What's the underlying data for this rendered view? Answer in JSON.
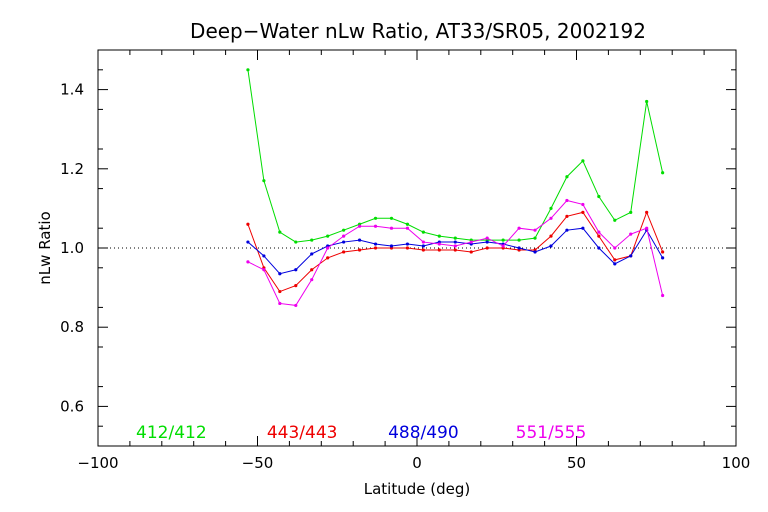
{
  "chart_data": {
    "type": "line",
    "title": "Deep−Water nLw Ratio, AT33/SR05, 2002192",
    "xlabel": "Latitude (deg)",
    "ylabel": "nLw Ratio",
    "xlim": [
      -100,
      100
    ],
    "ylim": [
      0.5,
      1.5
    ],
    "x_ticks": [
      -100,
      -50,
      0,
      50,
      100
    ],
    "x_tick_labels": [
      "−100",
      "−50",
      "0",
      "50",
      "100"
    ],
    "y_ticks": [
      0.6,
      0.8,
      1.0,
      1.2,
      1.4
    ],
    "y_tick_labels": [
      "0.6",
      "0.8",
      "1.0",
      "1.2",
      "1.4"
    ],
    "reference_line": {
      "y": 1.0,
      "style": "dotted"
    },
    "grid": false,
    "x": [
      -53,
      -48,
      -43,
      -38,
      -33,
      -28,
      -23,
      -18,
      -13,
      -8,
      -3,
      2,
      7,
      12,
      17,
      22,
      27,
      32,
      37,
      42,
      47,
      52,
      57,
      62,
      67,
      72,
      77
    ],
    "series": [
      {
        "name": "412/412",
        "color": "#00dd00",
        "values": [
          1.45,
          1.17,
          1.04,
          1.015,
          1.02,
          1.03,
          1.045,
          1.06,
          1.075,
          1.075,
          1.06,
          1.04,
          1.03,
          1.025,
          1.02,
          1.02,
          1.02,
          1.02,
          1.025,
          1.1,
          1.18,
          1.22,
          1.13,
          1.07,
          1.09,
          1.37,
          1.19
        ]
      },
      {
        "name": "443/443",
        "color": "#ee0000",
        "values": [
          1.06,
          0.95,
          0.89,
          0.905,
          0.945,
          0.975,
          0.99,
          0.995,
          1.0,
          1.0,
          1.0,
          0.995,
          0.995,
          0.995,
          0.99,
          1.0,
          1.0,
          0.995,
          0.995,
          1.03,
          1.08,
          1.09,
          1.03,
          0.97,
          0.98,
          1.09,
          0.99
        ]
      },
      {
        "name": "488/490",
        "color": "#0000dd",
        "values": [
          1.015,
          0.98,
          0.935,
          0.945,
          0.985,
          1.005,
          1.015,
          1.02,
          1.01,
          1.005,
          1.01,
          1.005,
          1.015,
          1.015,
          1.01,
          1.015,
          1.01,
          1.0,
          0.99,
          1.005,
          1.045,
          1.05,
          1.0,
          0.96,
          0.98,
          1.045,
          0.975
        ]
      },
      {
        "name": "551/555",
        "color": "#ee00ee",
        "values": [
          0.965,
          0.945,
          0.86,
          0.855,
          0.92,
          1.0,
          1.03,
          1.055,
          1.055,
          1.05,
          1.05,
          1.015,
          1.01,
          1.005,
          1.015,
          1.025,
          1.005,
          1.05,
          1.045,
          1.075,
          1.12,
          1.11,
          1.04,
          1.0,
          1.035,
          1.05,
          0.88
        ]
      }
    ]
  }
}
